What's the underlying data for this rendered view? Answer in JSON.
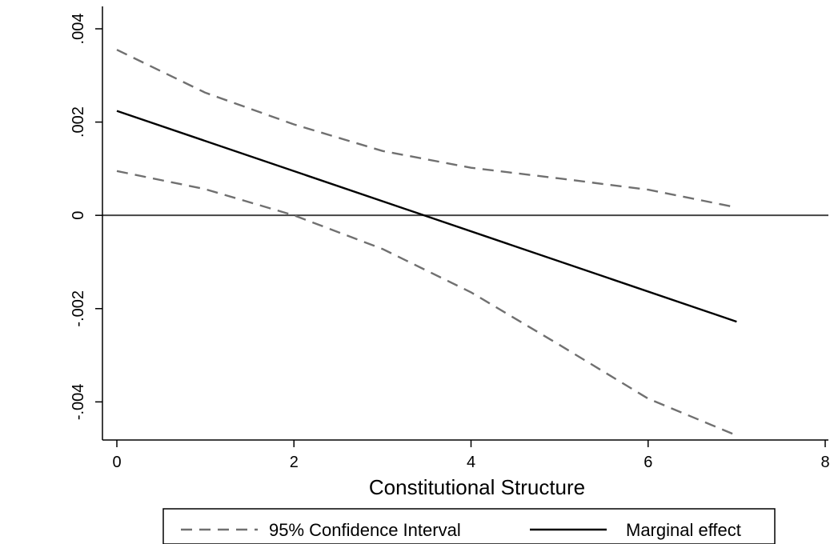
{
  "chart_data": {
    "type": "line",
    "title": "",
    "xlabel": "Constitutional Structure",
    "ylabel": "",
    "xlim": [
      0,
      8
    ],
    "ylim": [
      -0.0048,
      0.004
    ],
    "x_ticks": [
      0,
      2,
      4,
      6,
      8
    ],
    "x_tick_labels": [
      "0",
      "2",
      "4",
      "6",
      "8"
    ],
    "y_ticks": [
      -0.004,
      -0.002,
      0,
      0.002,
      0.004
    ],
    "y_tick_labels": [
      "-.004",
      "-.002",
      "0",
      ".002",
      ".004"
    ],
    "grid": false,
    "reference_line_y": 0,
    "legend_position": "bottom",
    "series": [
      {
        "name": "95% Confidence Interval",
        "style": "dashed",
        "color": "#707070",
        "x": [
          0,
          1,
          2,
          3,
          4,
          5,
          6,
          7
        ],
        "y": [
          0.00355,
          0.00263,
          0.00195,
          0.00138,
          0.00102,
          0.00079,
          0.00055,
          0.00017
        ]
      },
      {
        "name": "",
        "style": "dashed",
        "color": "#707070",
        "x": [
          0,
          1,
          2,
          3,
          4,
          5,
          6,
          7
        ],
        "y": [
          0.00095,
          0.00056,
          0.0,
          -0.00072,
          -0.00165,
          -0.00278,
          -0.00393,
          -0.00472
        ]
      },
      {
        "name": "Marginal effect",
        "style": "solid",
        "color": "#000000",
        "x": [
          0,
          7
        ],
        "y": [
          0.00224,
          -0.00228
        ]
      }
    ]
  }
}
